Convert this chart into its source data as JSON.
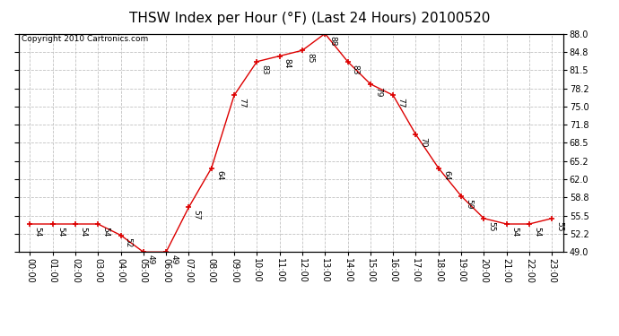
{
  "title": "THSW Index per Hour (°F) (Last 24 Hours) 20100520",
  "copyright": "Copyright 2010 Cartronics.com",
  "hours": [
    0,
    1,
    2,
    3,
    4,
    5,
    6,
    7,
    8,
    9,
    10,
    11,
    12,
    13,
    14,
    15,
    16,
    17,
    18,
    19,
    20,
    21,
    22,
    23
  ],
  "values": [
    54,
    54,
    54,
    54,
    52,
    49,
    49,
    57,
    64,
    77,
    83,
    84,
    85,
    88,
    83,
    79,
    77,
    70,
    64,
    59,
    55,
    54,
    54,
    55
  ],
  "xlabels": [
    "00:00",
    "01:00",
    "02:00",
    "03:00",
    "04:00",
    "05:00",
    "06:00",
    "07:00",
    "08:00",
    "09:00",
    "10:00",
    "11:00",
    "12:00",
    "13:00",
    "14:00",
    "15:00",
    "16:00",
    "17:00",
    "18:00",
    "19:00",
    "20:00",
    "21:00",
    "22:00",
    "23:00"
  ],
  "ylim": [
    49.0,
    88.0
  ],
  "yticks": [
    49.0,
    52.2,
    55.5,
    58.8,
    62.0,
    65.2,
    68.5,
    71.8,
    75.0,
    78.2,
    81.5,
    84.8,
    88.0
  ],
  "line_color": "#dd0000",
  "marker_color": "#dd0000",
  "bg_color": "#ffffff",
  "grid_color": "#bbbbbb",
  "title_fontsize": 11,
  "copyright_fontsize": 6.5,
  "label_fontsize": 7,
  "annotation_fontsize": 6.5
}
